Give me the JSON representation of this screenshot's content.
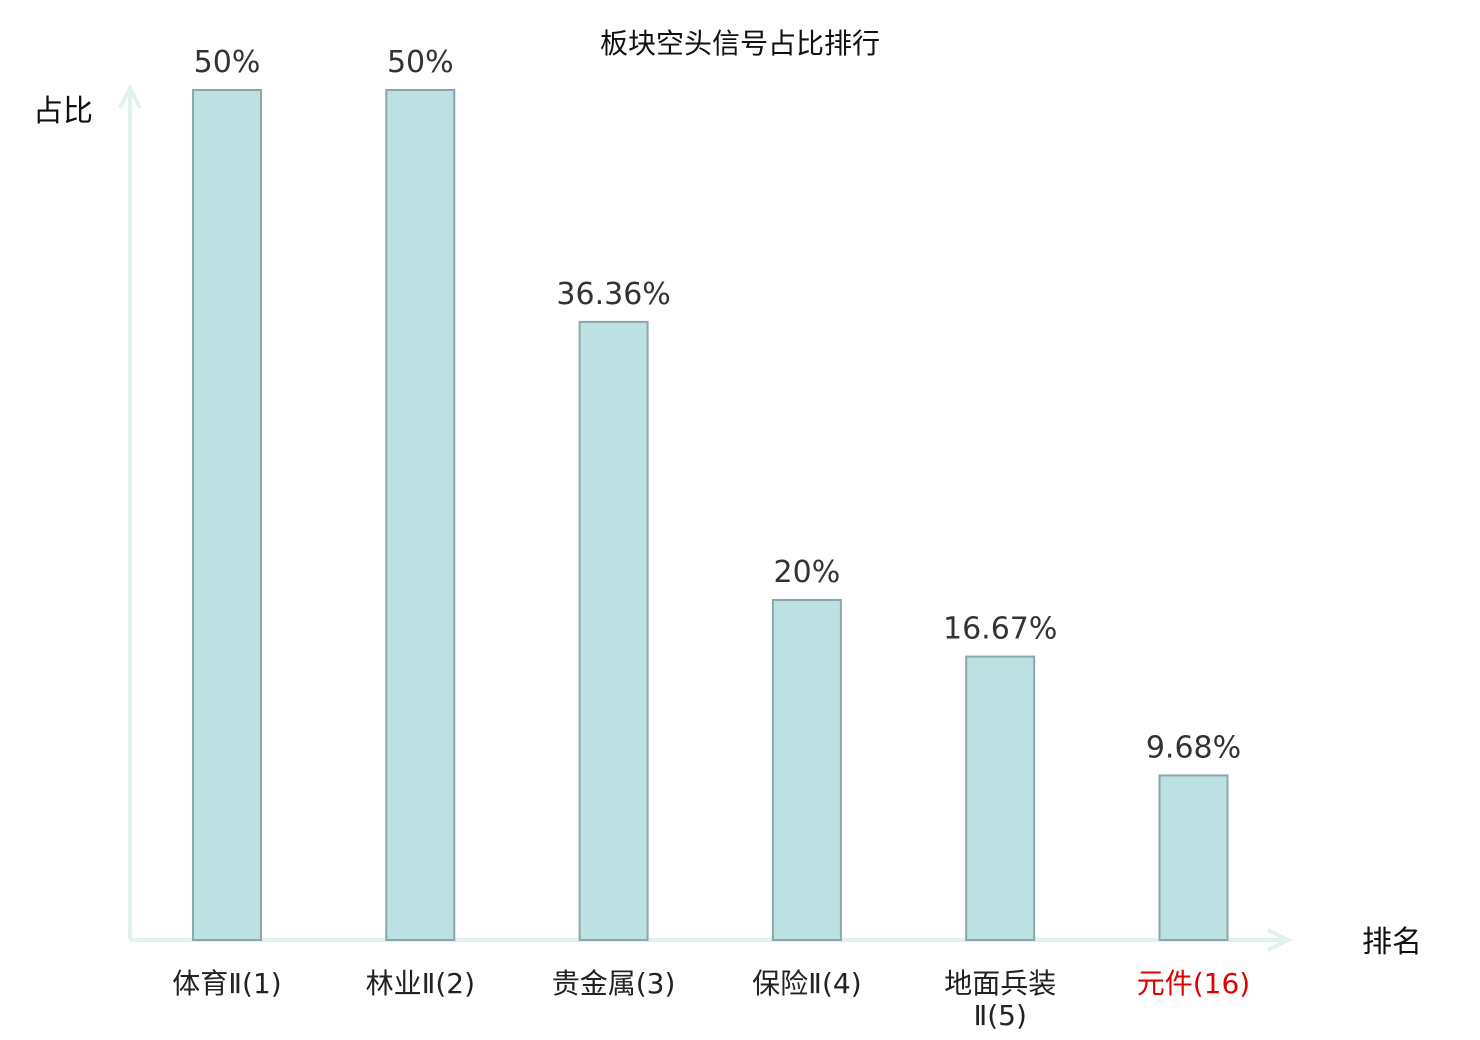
{
  "chart_data": {
    "type": "bar",
    "title": "板块空头信号占比排行",
    "ylabel": "占比",
    "xlabel": "排名",
    "ylim": [
      0,
      50
    ],
    "categories": [
      "体育Ⅱ(1)",
      "林业Ⅱ(2)",
      "贵金属(3)",
      "保险Ⅱ(4)",
      "地面兵装Ⅱ(5)",
      "元件(16)"
    ],
    "values": [
      50,
      50,
      36.36,
      20,
      16.67,
      9.68
    ],
    "value_labels": [
      "50%",
      "50%",
      "36.36%",
      "20%",
      "16.67%",
      "9.68%"
    ],
    "highlight_category": "元件(16)",
    "grid": false
  },
  "colors": {
    "bar_fill": "#bde0e2",
    "bar_stroke": "#8aa7aa",
    "axis": "#dff2ef",
    "highlight_label": "#e00000"
  }
}
